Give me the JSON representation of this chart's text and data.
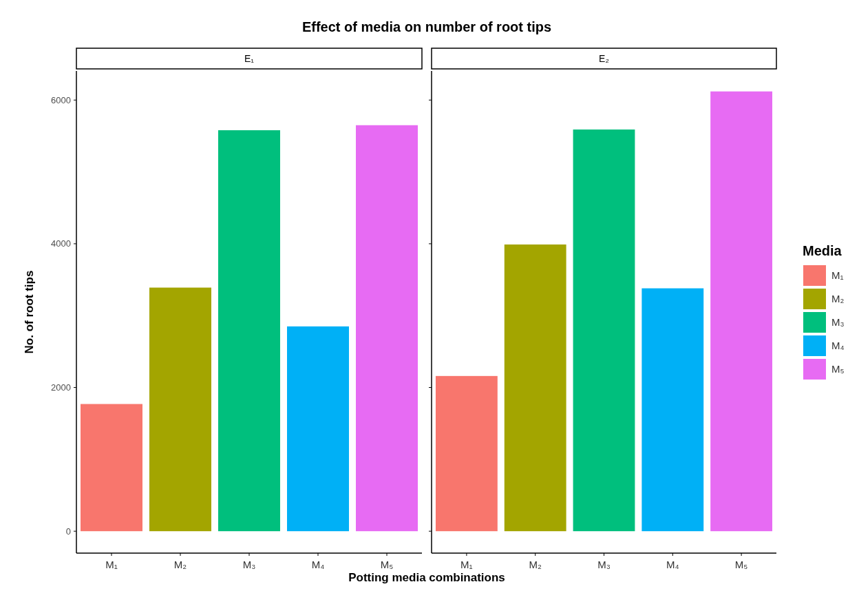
{
  "chart_data": [
    {
      "type": "bar",
      "title": "Effect of media on number of root tips",
      "subtitle": "E₁",
      "xlabel": "Potting media combinations",
      "ylabel": "No. of root tips",
      "categories": [
        "M₁",
        "M₂",
        "M₃",
        "M₄",
        "M₅"
      ],
      "stacked": true,
      "series": [
        {
          "name": "M₁",
          "color": "#f8766d",
          "values": [
            1770,
            null,
            null,
            null,
            null
          ]
        },
        {
          "name": "M₂",
          "color": "#a3a500",
          "values": [
            null,
            3390,
            null,
            null,
            null
          ]
        },
        {
          "name": "M₃",
          "color": "#00bf7d",
          "values": [
            null,
            null,
            5580,
            null,
            null
          ]
        },
        {
          "name": "M₄",
          "color": "#00b0f6",
          "values": [
            null,
            null,
            null,
            2850,
            null
          ]
        },
        {
          "name": "M₅",
          "color": "#e76bf3",
          "values": [
            null,
            null,
            null,
            null,
            5650
          ]
        }
      ],
      "ylim": [
        -305,
        6405
      ],
      "yticks": [
        0,
        2000,
        4000,
        6000
      ],
      "legend": "right",
      "legend_title": "Media"
    },
    {
      "type": "bar",
      "subtitle": "E₂",
      "categories": [
        "M₁",
        "M₂",
        "M₃",
        "M₄",
        "M₅"
      ],
      "stacked": true,
      "series": [
        {
          "color": "#f8766d",
          "values": [
            2160,
            null,
            null,
            null,
            null
          ]
        },
        {
          "color": "#a3a500",
          "values": [
            null,
            3990,
            null,
            null,
            null
          ]
        },
        {
          "color": "#00bf7d",
          "values": [
            null,
            null,
            5590,
            null,
            null
          ]
        },
        {
          "color": "#00b0f6",
          "values": [
            null,
            null,
            null,
            3380,
            null
          ]
        },
        {
          "color": "#e76bf3",
          "values": [
            null,
            null,
            null,
            null,
            6120
          ]
        }
      ],
      "ylim": [
        -305,
        6405
      ],
      "yticks": [
        0,
        2000,
        4000,
        6000
      ],
      "tick_labels": "x"
    }
  ]
}
